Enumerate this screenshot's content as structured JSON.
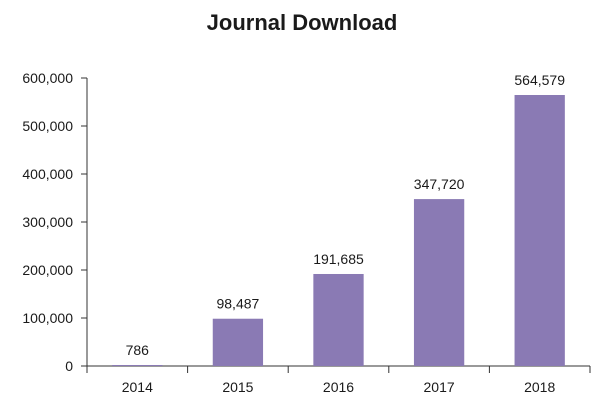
{
  "chart_data": {
    "type": "bar",
    "title": "Journal Download",
    "xlabel": "",
    "ylabel": "",
    "categories": [
      "2014",
      "2015",
      "2016",
      "2017",
      "2018"
    ],
    "values": [
      786,
      98487,
      191685,
      347720,
      564579
    ],
    "value_labels": [
      "786",
      "98,487",
      "191,685",
      "347,720",
      "564,579"
    ],
    "ylim": [
      0,
      600000
    ],
    "yticks": [
      0,
      100000,
      200000,
      300000,
      400000,
      500000,
      600000
    ],
    "ytick_labels": [
      "0",
      "100,000",
      "200,000",
      "300,000",
      "400,000",
      "500,000",
      "600,000"
    ],
    "grid": false,
    "legend": "none",
    "bar_color": "#8a7ab4"
  }
}
